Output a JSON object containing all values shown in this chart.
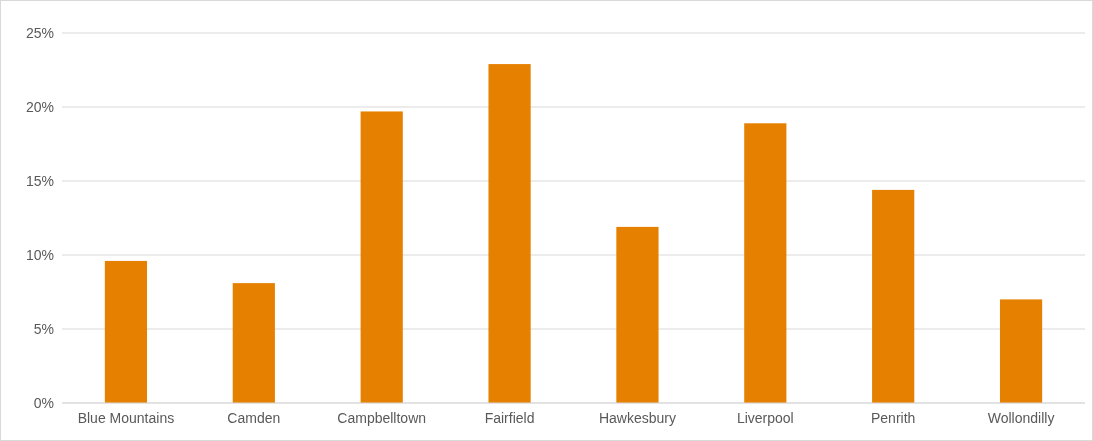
{
  "chart_data": {
    "type": "bar",
    "categories": [
      "Blue Mountains",
      "Camden",
      "Campbelltown",
      "Fairfield",
      "Hawkesbury",
      "Liverpool",
      "Penrith",
      "Wollondilly"
    ],
    "values": [
      9.6,
      8.1,
      19.7,
      22.9,
      11.9,
      18.9,
      14.4,
      7.0
    ],
    "color": "#e68000",
    "ylim": [
      0,
      25
    ],
    "yticks": [
      {
        "value": 0,
        "label": "0%"
      },
      {
        "value": 5,
        "label": "5%"
      },
      {
        "value": 10,
        "label": "10%"
      },
      {
        "value": 15,
        "label": "15%"
      },
      {
        "value": 20,
        "label": "20%"
      },
      {
        "value": 25,
        "label": "25%"
      }
    ],
    "grid": "y"
  }
}
